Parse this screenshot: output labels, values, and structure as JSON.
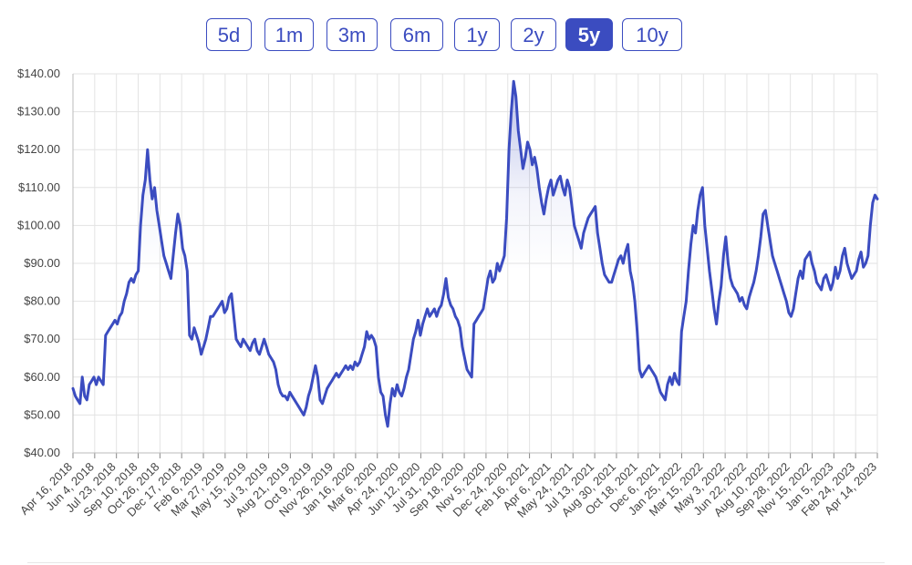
{
  "range_buttons": [
    {
      "label": "5d",
      "active": false
    },
    {
      "label": "1m",
      "active": false
    },
    {
      "label": "3m",
      "active": false
    },
    {
      "label": "6m",
      "active": false
    },
    {
      "label": "1y",
      "active": false
    },
    {
      "label": "2y",
      "active": false
    },
    {
      "label": "5y",
      "active": true
    },
    {
      "label": "10y",
      "active": false
    }
  ],
  "colors": {
    "accent": "#3b4cc0",
    "line": "#3b4cc0",
    "grid": "#e3e3e3"
  },
  "chart_data": {
    "type": "line",
    "title": "",
    "xlabel": "",
    "ylabel": "",
    "ylim": [
      40,
      140
    ],
    "y_ticks": [
      40,
      50,
      60,
      70,
      80,
      90,
      100,
      110,
      120,
      130,
      140
    ],
    "y_tick_labels": [
      "$40.00",
      "$50.00",
      "$60.00",
      "$70.00",
      "$80.00",
      "$90.00",
      "$100.00",
      "$110.00",
      "$120.00",
      "$130.00",
      "$140.00"
    ],
    "x_tick_labels": [
      "Apr 16, 2018",
      "Jun 4, 2018",
      "Jul 23, 2018",
      "Sep 10, 2018",
      "Oct 26, 2018",
      "Dec 17, 2018",
      "Feb 6, 2019",
      "Mar 27, 2019",
      "May 15, 2019",
      "Jul 3, 2019",
      "Aug 21, 2019",
      "Oct 9, 2019",
      "Nov 26, 2019",
      "Jan 16, 2020",
      "Mar 6, 2020",
      "Apr 24, 2020",
      "Jun 12, 2020",
      "Jul 31, 2020",
      "Sep 18, 2020",
      "Nov 5, 2020",
      "Dec 24, 2020",
      "Feb 16, 2021",
      "Apr 6, 2021",
      "May 24, 2021",
      "Jul 13, 2021",
      "Aug 30, 2021",
      "Oct 18, 2021",
      "Dec 6, 2021",
      "Jan 25, 2022",
      "Mar 15, 2022",
      "May 3, 2022",
      "Jun 22, 2022",
      "Aug 10, 2022",
      "Sep 28, 2022",
      "Nov 15, 2022",
      "Jan 5, 2023",
      "Feb 24, 2023",
      "Apr 14, 2023"
    ],
    "grid": true,
    "series": [
      {
        "values": [
          57,
          55,
          54,
          53,
          60,
          55,
          54,
          58,
          59,
          60,
          58,
          60,
          59,
          58,
          71,
          72,
          73,
          74,
          75,
          74,
          76,
          77,
          80,
          82,
          85,
          86,
          85,
          87,
          88,
          100,
          108,
          112,
          120,
          112,
          107,
          110,
          104,
          100,
          96,
          92,
          90,
          88,
          86,
          92,
          98,
          103,
          100,
          94,
          92,
          88,
          71,
          70,
          73,
          71,
          69,
          66,
          68,
          70,
          73,
          76,
          76,
          77,
          78,
          79,
          80,
          77,
          78,
          81,
          82,
          76,
          70,
          69,
          68,
          70,
          69,
          68,
          67,
          69,
          70,
          67,
          66,
          68,
          70,
          68,
          66,
          65,
          64,
          62,
          58,
          56,
          55,
          55,
          54,
          56,
          55,
          54,
          53,
          52,
          51,
          50,
          52,
          55,
          57,
          60,
          63,
          60,
          54,
          53,
          55,
          57,
          58,
          59,
          60,
          61,
          60,
          61,
          62,
          63,
          62,
          63,
          62,
          64,
          63,
          64,
          66,
          68,
          72,
          70,
          71,
          70,
          68,
          60,
          56,
          55,
          50,
          47,
          53,
          57,
          55,
          58,
          56,
          55,
          57,
          60,
          62,
          66,
          70,
          72,
          75,
          71,
          74,
          76,
          78,
          76,
          77,
          78,
          76,
          78,
          79,
          82,
          86,
          81,
          79,
          78,
          76,
          75,
          73,
          68,
          65,
          62,
          61,
          60,
          74,
          75,
          76,
          77,
          78,
          82,
          86,
          88,
          85,
          86,
          90,
          88,
          90,
          92,
          102,
          120,
          130,
          138,
          134,
          125,
          120,
          115,
          118,
          122,
          120,
          116,
          118,
          115,
          110,
          106,
          103,
          107,
          110,
          112,
          108,
          110,
          112,
          113,
          110,
          108,
          112,
          110,
          105,
          100,
          98,
          96,
          94,
          98,
          100,
          102,
          103,
          104,
          105,
          98,
          94,
          90,
          87,
          86,
          85,
          85,
          87,
          89,
          91,
          92,
          90,
          93,
          95,
          88,
          85,
          80,
          72,
          62,
          60,
          61,
          62,
          63,
          62,
          61,
          60,
          58,
          56,
          55,
          54,
          58,
          60,
          58,
          61,
          59,
          58,
          72,
          76,
          80,
          88,
          95,
          100,
          98,
          104,
          108,
          110,
          100,
          94,
          88,
          83,
          78,
          74,
          80,
          84,
          92,
          97,
          90,
          86,
          84,
          83,
          82,
          80,
          81,
          79,
          78,
          81,
          83,
          85,
          88,
          92,
          97,
          103,
          104,
          100,
          96,
          92,
          90,
          88,
          86,
          84,
          82,
          80,
          77,
          76,
          78,
          82,
          86,
          88,
          86,
          91,
          92,
          93,
          90,
          88,
          85,
          84,
          83,
          86,
          87,
          85,
          83,
          85,
          89,
          86,
          88,
          92,
          94,
          90,
          88,
          86,
          87,
          88,
          91,
          93,
          89,
          90,
          92,
          100,
          106,
          108,
          107
        ]
      }
    ]
  }
}
